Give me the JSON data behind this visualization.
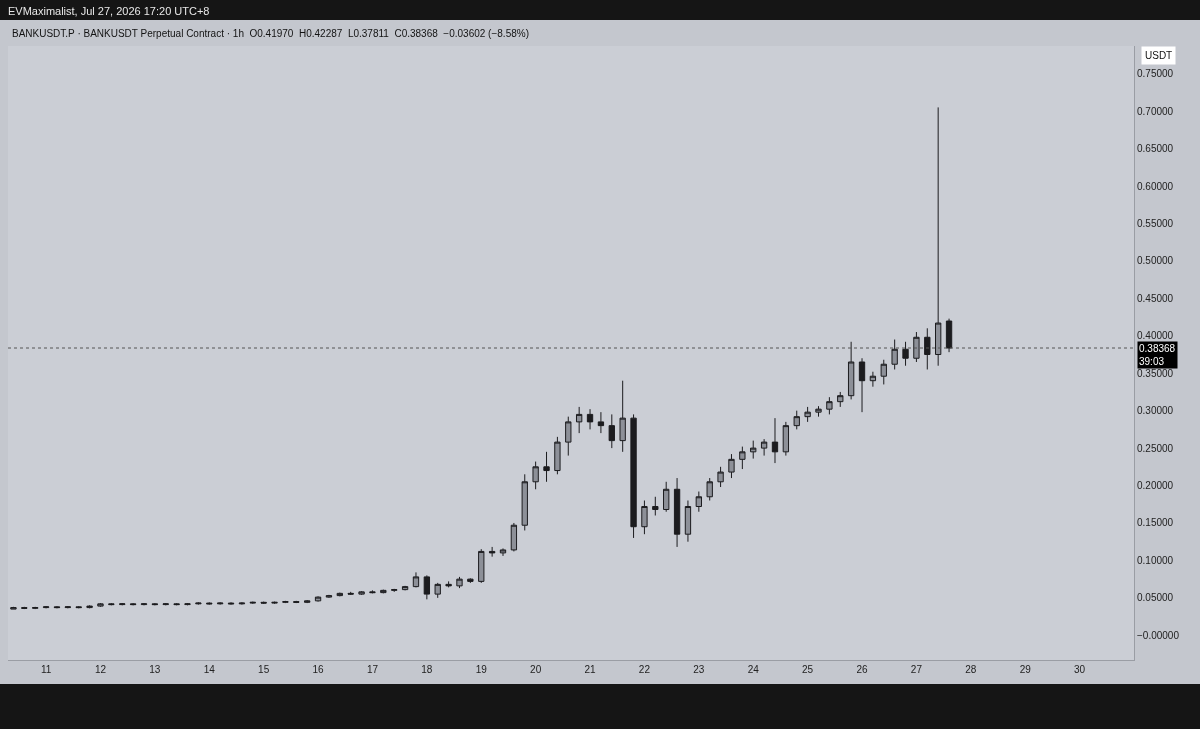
{
  "chart_data": {
    "type": "candlestick",
    "title": "BANKUSDT.P · BANKUSDT Perpetual Contract · 1h  O0.41970  H0.42287  L0.37811  C0.38368  −0.03602 (−8.58%)",
    "subtitle": "EVMaximalist, Jul 27, 2026 17:20 UTC+8",
    "annotations": [
      "USDT",
      "39:03"
    ],
    "color": "#1c1c1f",
    "x": [
      10.4,
      10.6,
      10.8,
      11.0,
      11.2,
      11.4,
      11.6,
      11.8,
      12.0,
      12.2,
      12.4,
      12.6,
      12.8,
      13.0,
      13.2,
      13.4,
      13.6,
      13.8,
      14.0,
      14.2,
      14.4,
      14.6,
      14.8,
      15.0,
      15.2,
      15.4,
      15.6,
      15.8,
      16.0,
      16.2,
      16.4,
      16.6,
      16.8,
      17.0,
      17.2,
      17.4,
      17.6,
      17.8,
      18.0,
      18.2,
      18.4,
      18.6,
      18.8,
      19.0,
      19.2,
      19.4,
      19.6,
      19.8,
      20.0,
      20.2,
      20.4,
      20.6,
      20.8,
      21.0,
      21.2,
      21.4,
      21.6,
      21.8,
      22.0,
      22.2,
      22.4,
      22.6,
      22.8,
      23.0,
      23.2,
      23.4,
      23.6,
      23.8,
      24.0,
      24.2,
      24.4,
      24.6,
      24.8,
      25.0,
      25.2,
      25.4,
      25.6,
      25.8,
      26.0,
      26.2,
      26.4,
      26.6,
      26.8,
      27.0,
      27.2,
      27.4,
      27.6
    ],
    "ohlc": [
      [
        0.035,
        0.038,
        0.035,
        0.037
      ],
      [
        0.037,
        0.038,
        0.035,
        0.036
      ],
      [
        0.036,
        0.038,
        0.035,
        0.037
      ],
      [
        0.037,
        0.039,
        0.036,
        0.038
      ],
      [
        0.038,
        0.039,
        0.036,
        0.037
      ],
      [
        0.037,
        0.039,
        0.036,
        0.038
      ],
      [
        0.038,
        0.039,
        0.036,
        0.037
      ],
      [
        0.037,
        0.04,
        0.036,
        0.039
      ],
      [
        0.039,
        0.043,
        0.038,
        0.042
      ],
      [
        0.042,
        0.043,
        0.04,
        0.041
      ],
      [
        0.041,
        0.043,
        0.04,
        0.042
      ],
      [
        0.042,
        0.043,
        0.04,
        0.041
      ],
      [
        0.041,
        0.043,
        0.04,
        0.042
      ],
      [
        0.042,
        0.043,
        0.04,
        0.041
      ],
      [
        0.041,
        0.043,
        0.04,
        0.042
      ],
      [
        0.042,
        0.043,
        0.04,
        0.041
      ],
      [
        0.041,
        0.043,
        0.04,
        0.042
      ],
      [
        0.042,
        0.044,
        0.041,
        0.043
      ],
      [
        0.043,
        0.044,
        0.041,
        0.042
      ],
      [
        0.042,
        0.044,
        0.041,
        0.043
      ],
      [
        0.043,
        0.044,
        0.041,
        0.042
      ],
      [
        0.042,
        0.044,
        0.041,
        0.043
      ],
      [
        0.043,
        0.045,
        0.042,
        0.044
      ],
      [
        0.044,
        0.045,
        0.042,
        0.043
      ],
      [
        0.043,
        0.045,
        0.042,
        0.044
      ],
      [
        0.044,
        0.046,
        0.043,
        0.045
      ],
      [
        0.045,
        0.046,
        0.043,
        0.044
      ],
      [
        0.044,
        0.047,
        0.043,
        0.046
      ],
      [
        0.046,
        0.052,
        0.045,
        0.051
      ],
      [
        0.051,
        0.054,
        0.05,
        0.053
      ],
      [
        0.053,
        0.057,
        0.052,
        0.056
      ],
      [
        0.056,
        0.058,
        0.054,
        0.055
      ],
      [
        0.055,
        0.059,
        0.054,
        0.058
      ],
      [
        0.058,
        0.06,
        0.056,
        0.057
      ],
      [
        0.057,
        0.061,
        0.056,
        0.06
      ],
      [
        0.06,
        0.062,
        0.058,
        0.061
      ],
      [
        0.061,
        0.066,
        0.06,
        0.065
      ],
      [
        0.065,
        0.084,
        0.064,
        0.078
      ],
      [
        0.078,
        0.08,
        0.048,
        0.055
      ],
      [
        0.055,
        0.07,
        0.05,
        0.068
      ],
      [
        0.068,
        0.072,
        0.064,
        0.066
      ],
      [
        0.066,
        0.078,
        0.063,
        0.075
      ],
      [
        0.075,
        0.076,
        0.07,
        0.072
      ],
      [
        0.072,
        0.115,
        0.07,
        0.112
      ],
      [
        0.112,
        0.118,
        0.105,
        0.11
      ],
      [
        0.11,
        0.116,
        0.106,
        0.114
      ],
      [
        0.114,
        0.15,
        0.112,
        0.147
      ],
      [
        0.147,
        0.215,
        0.14,
        0.205
      ],
      [
        0.205,
        0.232,
        0.195,
        0.225
      ],
      [
        0.225,
        0.245,
        0.205,
        0.22
      ],
      [
        0.22,
        0.265,
        0.215,
        0.258
      ],
      [
        0.258,
        0.292,
        0.24,
        0.285
      ],
      [
        0.285,
        0.305,
        0.27,
        0.295
      ],
      [
        0.295,
        0.302,
        0.275,
        0.285
      ],
      [
        0.285,
        0.298,
        0.27,
        0.28
      ],
      [
        0.28,
        0.295,
        0.25,
        0.26
      ],
      [
        0.26,
        0.34,
        0.245,
        0.29
      ],
      [
        0.29,
        0.295,
        0.13,
        0.145
      ],
      [
        0.145,
        0.18,
        0.135,
        0.172
      ],
      [
        0.172,
        0.185,
        0.16,
        0.168
      ],
      [
        0.168,
        0.205,
        0.165,
        0.195
      ],
      [
        0.195,
        0.21,
        0.118,
        0.135
      ],
      [
        0.135,
        0.18,
        0.125,
        0.172
      ],
      [
        0.172,
        0.192,
        0.165,
        0.185
      ],
      [
        0.185,
        0.21,
        0.18,
        0.205
      ],
      [
        0.205,
        0.225,
        0.198,
        0.218
      ],
      [
        0.218,
        0.242,
        0.21,
        0.235
      ],
      [
        0.235,
        0.252,
        0.222,
        0.245
      ],
      [
        0.245,
        0.26,
        0.236,
        0.25
      ],
      [
        0.25,
        0.262,
        0.24,
        0.258
      ],
      [
        0.258,
        0.29,
        0.23,
        0.245
      ],
      [
        0.245,
        0.285,
        0.24,
        0.28
      ],
      [
        0.28,
        0.3,
        0.275,
        0.292
      ],
      [
        0.292,
        0.305,
        0.285,
        0.298
      ],
      [
        0.298,
        0.306,
        0.292,
        0.302
      ],
      [
        0.302,
        0.318,
        0.295,
        0.312
      ],
      [
        0.312,
        0.325,
        0.305,
        0.32
      ],
      [
        0.32,
        0.392,
        0.315,
        0.365
      ],
      [
        0.365,
        0.37,
        0.298,
        0.34
      ],
      [
        0.34,
        0.352,
        0.332,
        0.346
      ],
      [
        0.346,
        0.368,
        0.335,
        0.362
      ],
      [
        0.362,
        0.395,
        0.355,
        0.382
      ],
      [
        0.382,
        0.392,
        0.36,
        0.37
      ],
      [
        0.37,
        0.405,
        0.365,
        0.398
      ],
      [
        0.398,
        0.41,
        0.355,
        0.375
      ],
      [
        0.375,
        0.705,
        0.36,
        0.417
      ],
      [
        0.4197,
        0.42287,
        0.37811,
        0.38368
      ]
    ],
    "xlim": [
      10.3,
      31.0
    ],
    "xticks": [
      11,
      12,
      13,
      14,
      15,
      16,
      17,
      18,
      19,
      20,
      21,
      22,
      23,
      24,
      25,
      26,
      27,
      28,
      29,
      30
    ],
    "ylim": [
      -0.033,
      0.787
    ],
    "yticks": [
      {
        "value": 0,
        "label": "−0.00000"
      },
      {
        "value": 0.05,
        "label": "0.05000"
      },
      {
        "value": 0.1,
        "label": "0.10000"
      },
      {
        "value": 0.15,
        "label": "0.15000"
      },
      {
        "value": 0.2,
        "label": "0.20000"
      },
      {
        "value": 0.25,
        "label": "0.25000"
      },
      {
        "value": 0.3,
        "label": "0.30000"
      },
      {
        "value": 0.35,
        "label": "0.35000"
      },
      {
        "value": 0.4,
        "label": "0.40000"
      },
      {
        "value": 0.45,
        "label": "0.45000"
      },
      {
        "value": 0.5,
        "label": "0.50000"
      },
      {
        "value": 0.55,
        "label": "0.55000"
      },
      {
        "value": 0.6,
        "label": "0.60000"
      },
      {
        "value": 0.65,
        "label": "0.65000"
      },
      {
        "value": 0.7,
        "label": "0.70000"
      },
      {
        "value": 0.75,
        "label": "0.75000"
      }
    ],
    "ref_lines": [
      {
        "axis": "y",
        "value": 0.38368,
        "label": "0.38368",
        "line_style": "dotted",
        "color": "#555555"
      }
    ],
    "grid": false,
    "legend": false
  }
}
